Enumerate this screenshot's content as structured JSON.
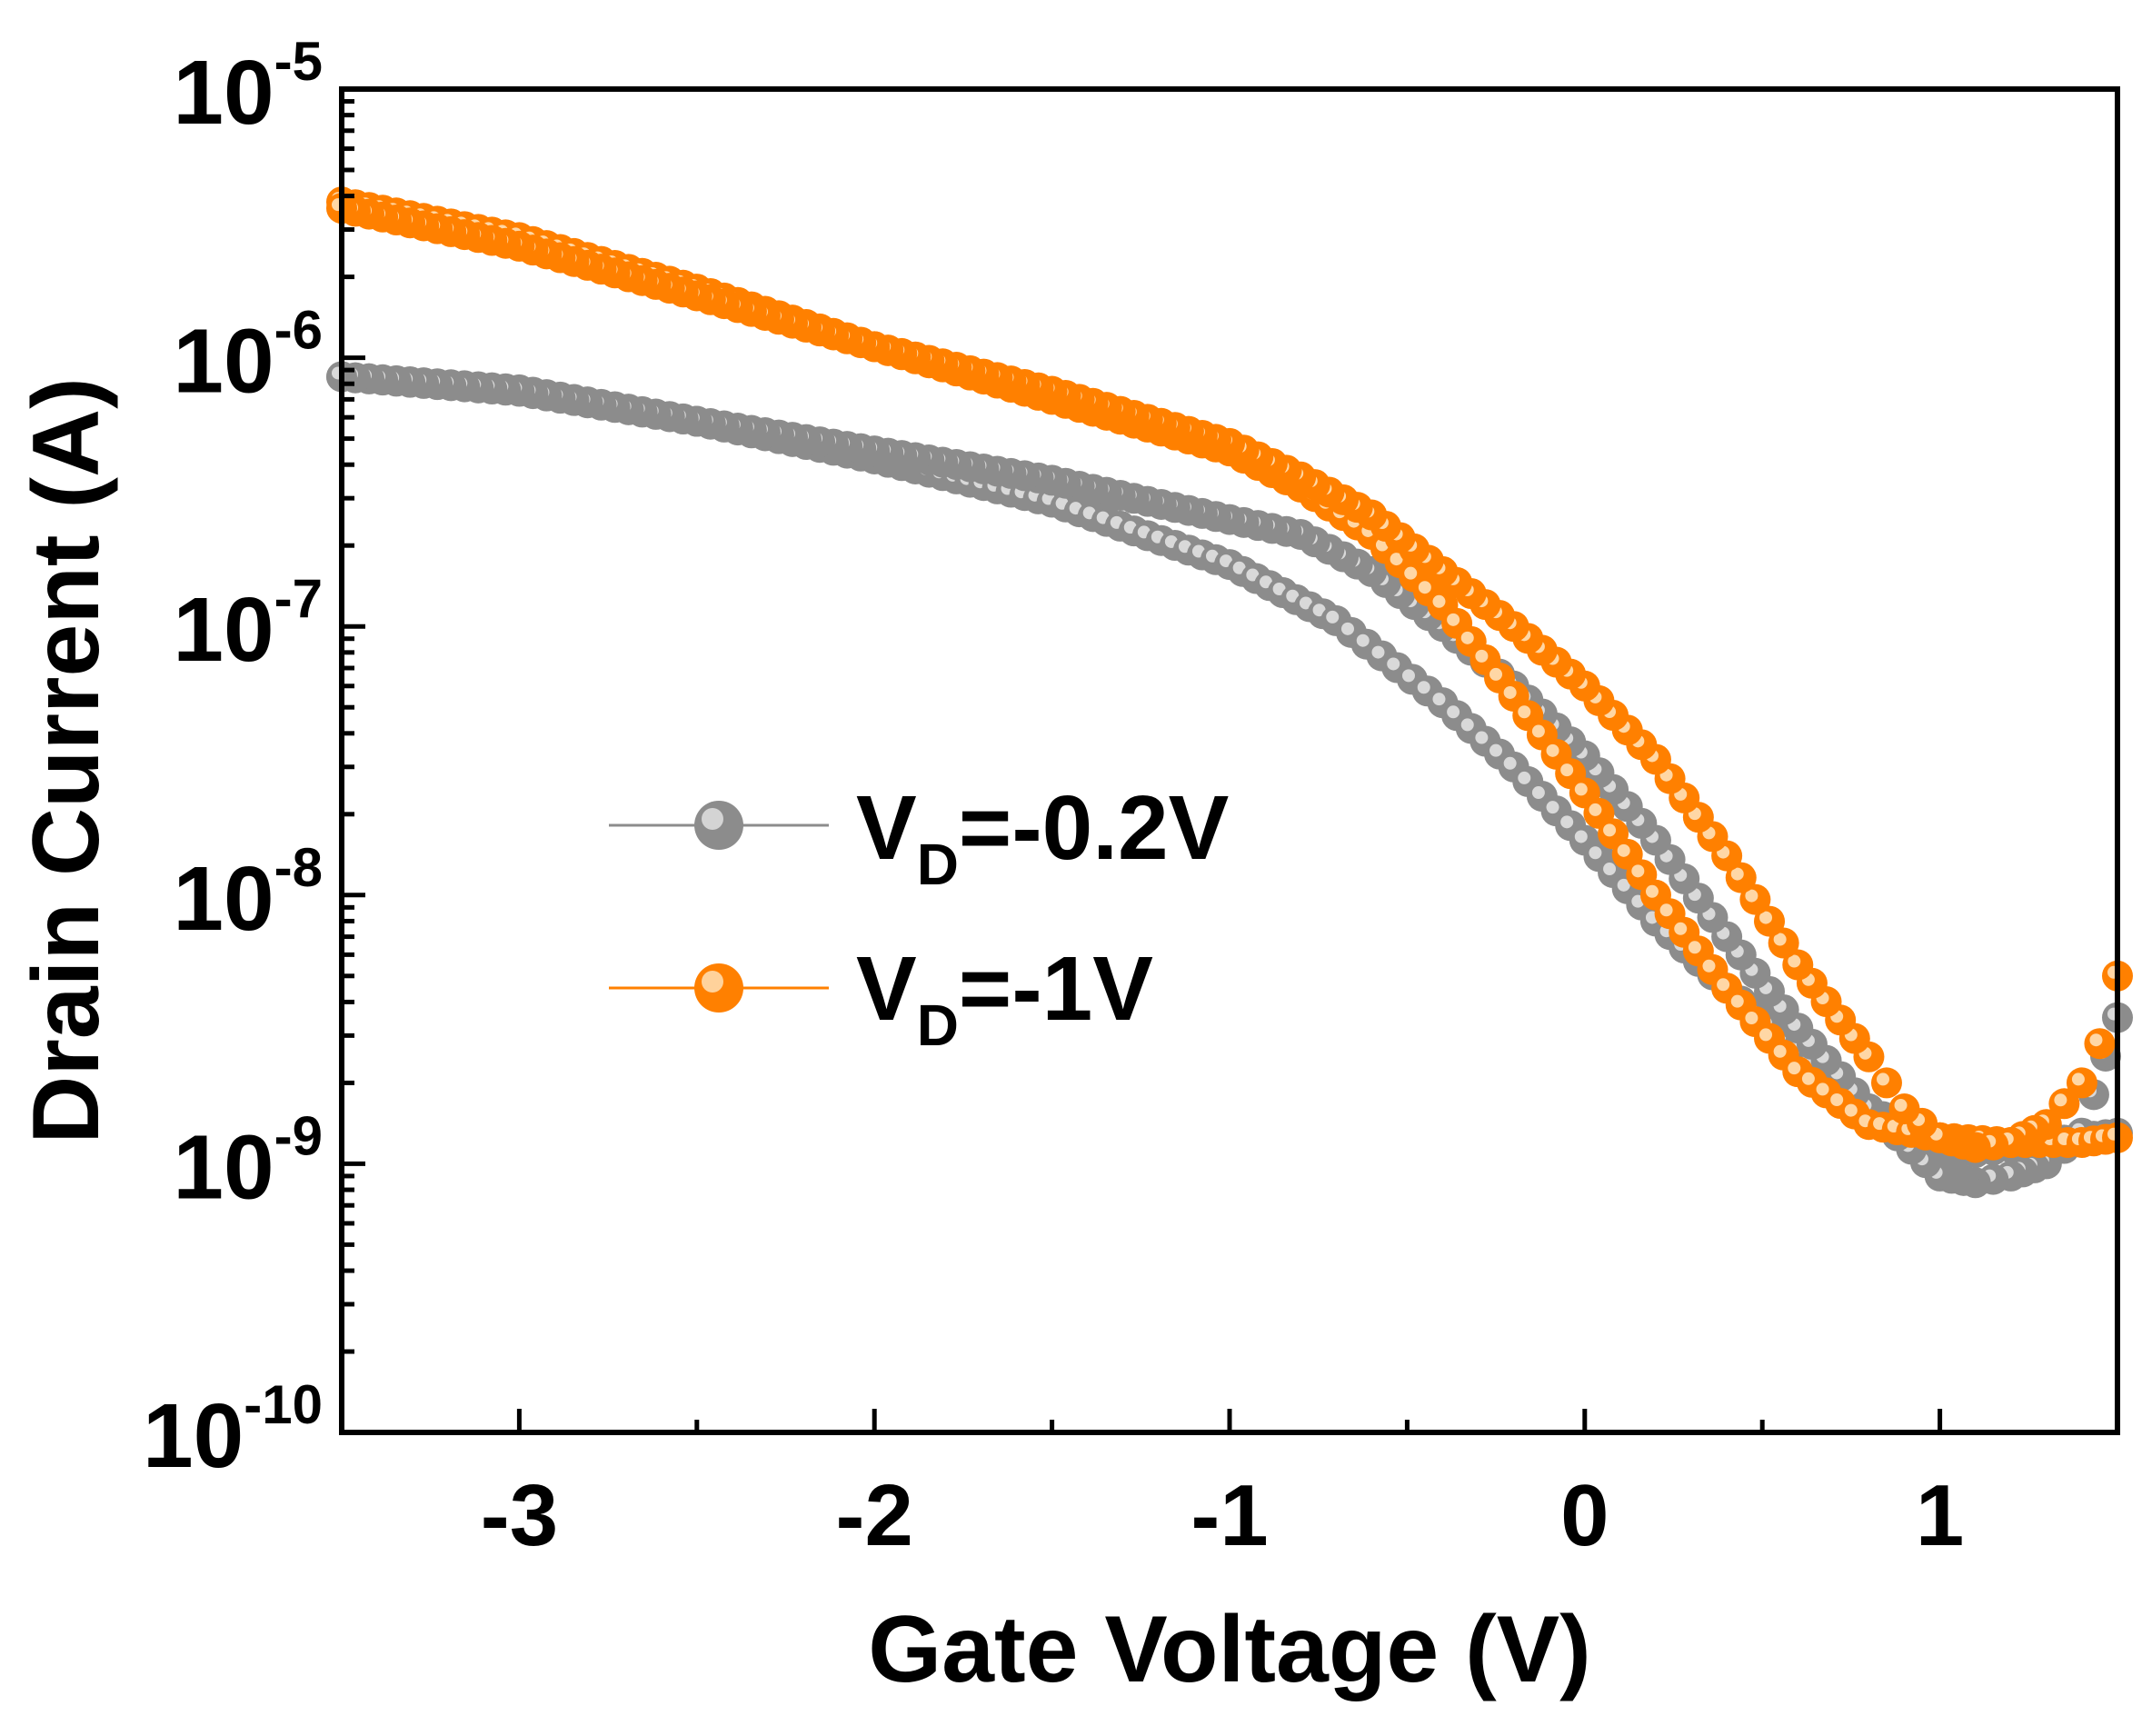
{
  "chart_data": {
    "type": "scatter",
    "title": "",
    "xlabel": "Gate Voltage (V)",
    "ylabel": "Drain Current (A)",
    "xlim": [
      -3.5,
      1.5
    ],
    "ylim": [
      1e-10,
      1e-05
    ],
    "yscale": "log",
    "xticks": [
      -3,
      -2,
      -1,
      0,
      1
    ],
    "xtick_labels": [
      "-3",
      "-2",
      "-1",
      "0",
      "1"
    ],
    "yticks": [
      {
        "base": "10",
        "exp": "-5",
        "value": 1e-05
      },
      {
        "base": "10",
        "exp": "-6",
        "value": 1e-06
      },
      {
        "base": "10",
        "exp": "-7",
        "value": 1e-07
      },
      {
        "base": "10",
        "exp": "-8",
        "value": 1e-08
      },
      {
        "base": "10",
        "exp": "-9",
        "value": 1e-09
      },
      {
        "base": "10",
        "exp": "-10",
        "value": 1e-10
      }
    ],
    "legend_position": "center-left",
    "series": [
      {
        "name": "VD=-0.2V",
        "legend_main": "V",
        "legend_sub": "D",
        "legend_rest": "=-0.2V",
        "color": "#8c8c8c",
        "highlight": "#e6e6e6",
        "branches": [
          {
            "x": [
              -3.5,
              -3.0,
              -2.5,
              -2.0,
              -1.5,
              -1.0,
              -0.7,
              -0.4,
              -0.2,
              0.0,
              0.2,
              0.4,
              0.6,
              0.8,
              1.0,
              1.1,
              1.2,
              1.3,
              1.4,
              1.5
            ],
            "y": [
              8.5e-07,
              7.6e-07,
              5.8e-07,
              4.2e-07,
              2.9e-07,
              1.7e-07,
              1.05e-07,
              5.2e-08,
              3e-08,
              1.6e-08,
              8e-09,
              4.5e-09,
              2.6e-09,
              1.6e-09,
              1.15e-09,
              1.1e-09,
              1.15e-09,
              1.2e-09,
              1.25e-09,
              1.3e-09
            ]
          },
          {
            "x": [
              1.5,
              1.4,
              1.3,
              1.2,
              1.1,
              1.0,
              0.8,
              0.6,
              0.4,
              0.2,
              0.0,
              -0.2,
              -0.4,
              -0.6,
              -0.8,
              -1.0,
              -1.5,
              -2.0,
              -2.5,
              -3.0,
              -3.5
            ],
            "y": [
              3.5e-09,
              1.3e-09,
              1e-09,
              9e-10,
              8.5e-10,
              9e-10,
              1.6e-09,
              3.2e-09,
              7e-09,
              1.6e-08,
              3.3e-08,
              6e-08,
              1e-07,
              1.6e-07,
              2.2e-07,
              2.5e-07,
              3.5e-07,
              4.5e-07,
              5.8e-07,
              7.5e-07,
              8.5e-07
            ]
          }
        ]
      },
      {
        "name": "VD=-1V",
        "legend_main": "V",
        "legend_sub": "D",
        "legend_rest": "=-1V",
        "color": "#ff8000",
        "highlight": "#ffe6c2",
        "branches": [
          {
            "x": [
              -3.5,
              -3.0,
              -2.5,
              -2.0,
              -1.5,
              -1.0,
              -0.8,
              -0.6,
              -0.4,
              -0.2,
              0.0,
              0.2,
              0.4,
              0.6,
              0.8,
              1.0,
              1.2,
              1.4,
              1.5
            ],
            "y": [
              3.8e-06,
              2.8e-06,
              1.8e-06,
              1.1e-06,
              7e-07,
              4.5e-07,
              3.3e-07,
              2.2e-07,
              1.2e-07,
              5.5e-08,
              2.4e-08,
              1e-08,
              4.5e-09,
              2.2e-09,
              1.4e-09,
              1.25e-09,
              1.2e-09,
              1.2e-09,
              1.25e-09
            ]
          },
          {
            "x": [
              1.5,
              1.45,
              1.4,
              1.3,
              1.2,
              1.1,
              1.0,
              0.9,
              0.8,
              0.6,
              0.4,
              0.2,
              0.0,
              -0.2,
              -0.4,
              -0.6,
              -0.8,
              -1.0,
              -1.5,
              -2.0,
              -2.5,
              -3.0,
              -3.5
            ],
            "y": [
              5e-09,
              2.8e-09,
              2e-09,
              1.4e-09,
              1.2e-09,
              1.15e-09,
              1.25e-09,
              1.6e-09,
              2.5e-09,
              5.5e-09,
              1.4e-08,
              3.2e-08,
              6e-08,
              1e-07,
              1.6e-07,
              2.6e-07,
              3.6e-07,
              4.8e-07,
              7.5e-07,
              1.1e-06,
              1.7e-06,
              2.6e-06,
              3.6e-06
            ]
          }
        ]
      }
    ]
  }
}
